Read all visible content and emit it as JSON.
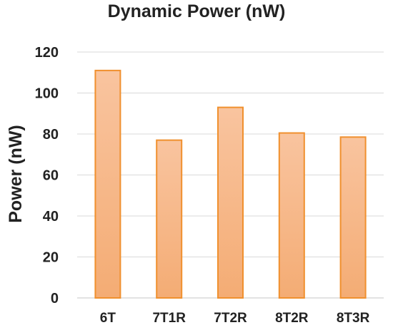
{
  "chart_data": {
    "type": "bar",
    "title": "Dynamic Power (nW)",
    "xlabel": "",
    "ylabel": "Power (nW)",
    "categories": [
      "6T",
      "7T1R",
      "7T2R",
      "8T2R",
      "8T3R"
    ],
    "values": [
      111,
      77,
      93,
      80.5,
      78.5
    ],
    "ylim": [
      0,
      120
    ],
    "yticks": [
      "0",
      "20",
      "40",
      "60",
      "80",
      "100",
      "120"
    ],
    "grid": true,
    "legend": "none",
    "colors": {
      "bar_fill_top": "#f9c49f",
      "bar_fill_bottom": "#f4ac74",
      "bar_stroke": "#f0902e",
      "grid": "#d9d9d9"
    }
  }
}
